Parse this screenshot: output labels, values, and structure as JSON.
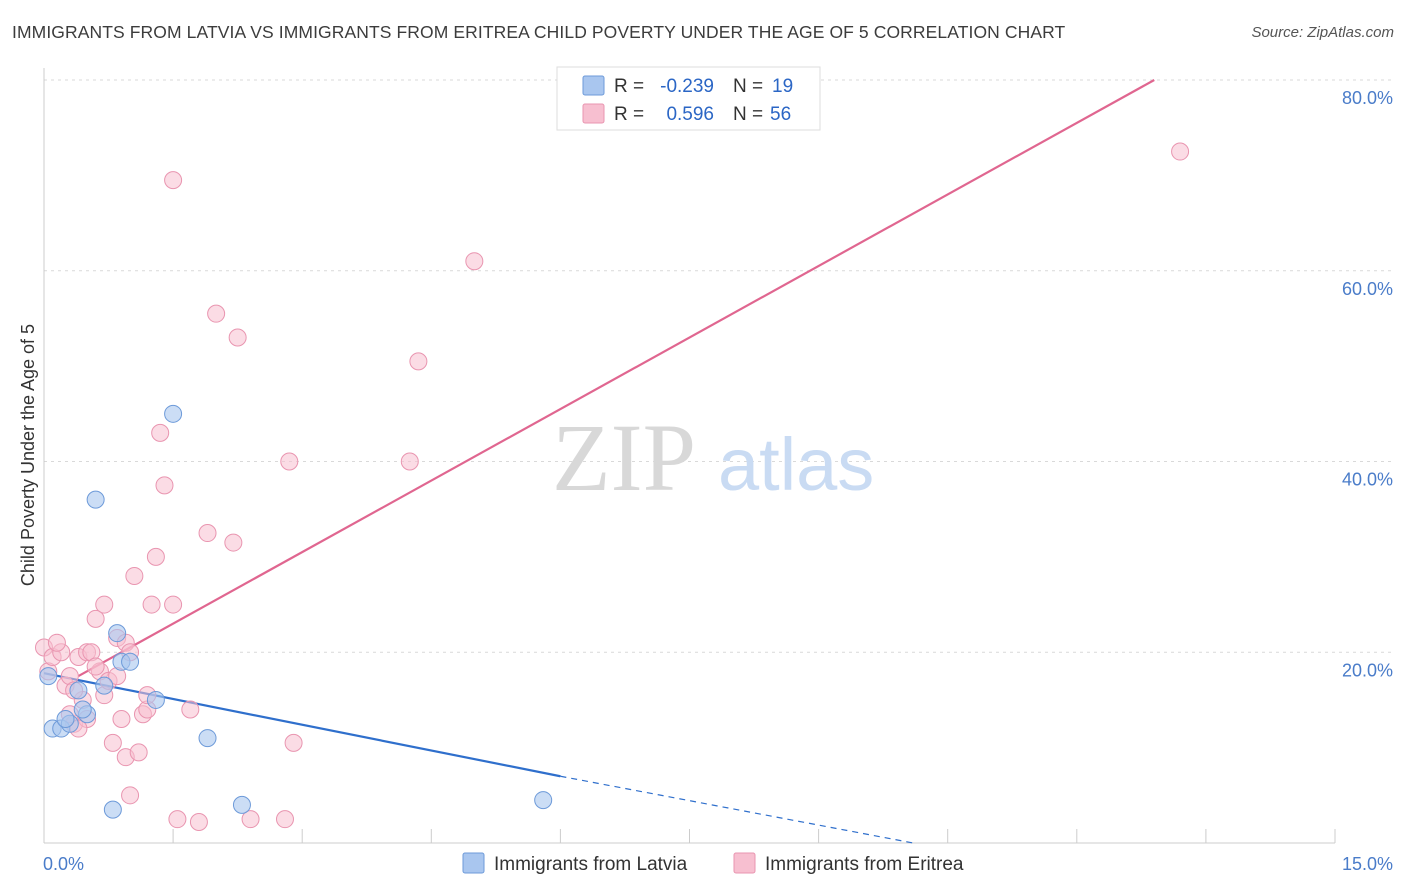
{
  "title": "IMMIGRANTS FROM LATVIA VS IMMIGRANTS FROM ERITREA CHILD POVERTY UNDER THE AGE OF 5 CORRELATION CHART",
  "source": "Source: ZipAtlas.com",
  "watermark": {
    "zip": "ZIP",
    "atlas": "atlas"
  },
  "colors": {
    "latvia_fill": "#a9c6ef",
    "latvia_stroke": "#6d9ad9",
    "latvia_line": "#2f6fcc",
    "eritrea_fill": "#f7bfd0",
    "eritrea_stroke": "#e995b0",
    "eritrea_line": "#e06690",
    "tick_label": "#4a7cc9",
    "grid": "#d9d9d9"
  },
  "chart_data": {
    "type": "scatter",
    "title": "IMMIGRANTS FROM LATVIA VS IMMIGRANTS FROM ERITREA CHILD POVERTY UNDER THE AGE OF 5 CORRELATION CHART",
    "xlabel": "",
    "ylabel": "Child Poverty Under the Age of 5",
    "xlim": [
      0,
      15
    ],
    "ylim": [
      0,
      80
    ],
    "x_tick_labels": [
      "0.0%",
      "15.0%"
    ],
    "y_tick_values": [
      20,
      40,
      60,
      80
    ],
    "y_tick_labels": [
      "20.0%",
      "40.0%",
      "60.0%",
      "80.0%"
    ],
    "legend_position": "bottom",
    "stats_box": [
      {
        "series": "Immigrants from Latvia",
        "r_label": "R =",
        "r": "-0.239",
        "n_label": "N =",
        "n": "19"
      },
      {
        "series": "Immigrants from Eritrea",
        "r_label": "R =",
        "r": "0.596",
        "n_label": "N =",
        "n": "56"
      }
    ],
    "series": [
      {
        "name": "Immigrants from Latvia",
        "color": "#a9c6ef",
        "points": [
          [
            0.05,
            17.5
          ],
          [
            0.1,
            12
          ],
          [
            0.2,
            12
          ],
          [
            0.3,
            12.5
          ],
          [
            0.25,
            13
          ],
          [
            0.4,
            16
          ],
          [
            0.5,
            13.5
          ],
          [
            0.45,
            14
          ],
          [
            0.6,
            36
          ],
          [
            0.7,
            16.5
          ],
          [
            0.85,
            22
          ],
          [
            0.9,
            19
          ],
          [
            1.0,
            19
          ],
          [
            1.3,
            15
          ],
          [
            1.5,
            45
          ],
          [
            1.9,
            11
          ],
          [
            2.3,
            4
          ],
          [
            0.8,
            3.5
          ],
          [
            5.8,
            4.5
          ]
        ],
        "trend": {
          "x": [
            0,
            6
          ],
          "y": [
            17.8,
            7.0
          ],
          "dashed_to": [
            10.1,
            0
          ]
        }
      },
      {
        "name": "Immigrants from Eritrea",
        "color": "#f7bfd0",
        "points": [
          [
            0.0,
            20.5
          ],
          [
            0.05,
            18
          ],
          [
            0.1,
            19.5
          ],
          [
            0.2,
            20
          ],
          [
            0.25,
            16.5
          ],
          [
            0.3,
            17.5
          ],
          [
            0.35,
            12.5
          ],
          [
            0.4,
            19.5
          ],
          [
            0.45,
            15
          ],
          [
            0.5,
            13
          ],
          [
            0.5,
            20
          ],
          [
            0.55,
            20
          ],
          [
            0.6,
            23.5
          ],
          [
            0.65,
            18
          ],
          [
            0.7,
            15.5
          ],
          [
            0.7,
            25
          ],
          [
            0.75,
            17
          ],
          [
            0.8,
            10.5
          ],
          [
            0.85,
            21.5
          ],
          [
            0.85,
            17.5
          ],
          [
            0.9,
            13
          ],
          [
            0.95,
            9
          ],
          [
            0.95,
            21
          ],
          [
            1.0,
            5
          ],
          [
            1.0,
            20
          ],
          [
            1.05,
            28
          ],
          [
            1.1,
            9.5
          ],
          [
            1.15,
            13.5
          ],
          [
            1.2,
            14
          ],
          [
            1.2,
            15.5
          ],
          [
            1.25,
            25
          ],
          [
            1.3,
            30
          ],
          [
            1.35,
            43
          ],
          [
            1.4,
            37.5
          ],
          [
            1.5,
            25
          ],
          [
            1.5,
            69.5
          ],
          [
            1.55,
            2.5
          ],
          [
            1.7,
            14
          ],
          [
            1.8,
            2.2
          ],
          [
            1.9,
            32.5
          ],
          [
            2.0,
            55.5
          ],
          [
            2.2,
            31.5
          ],
          [
            2.25,
            53
          ],
          [
            2.4,
            2.5
          ],
          [
            2.8,
            2.5
          ],
          [
            2.85,
            40
          ],
          [
            2.9,
            10.5
          ],
          [
            4.25,
            40
          ],
          [
            4.35,
            50.5
          ],
          [
            5.0,
            61
          ],
          [
            13.2,
            72.5
          ],
          [
            0.15,
            21
          ],
          [
            0.3,
            13.5
          ],
          [
            0.6,
            18.5
          ],
          [
            0.4,
            12
          ],
          [
            0.35,
            16
          ]
        ],
        "trend": {
          "x": [
            0.4,
            12.9
          ],
          "y": [
            17.5,
            80
          ]
        }
      }
    ]
  },
  "legend": {
    "latvia": "Immigrants from Latvia",
    "eritrea": "Immigrants from Eritrea"
  }
}
